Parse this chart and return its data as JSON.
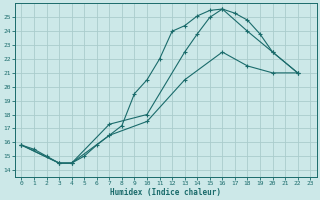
{
  "xlabel": "Humidex (Indice chaleur)",
  "xlim": [
    -0.5,
    23.5
  ],
  "ylim": [
    13.5,
    26.0
  ],
  "yticks": [
    14,
    15,
    16,
    17,
    18,
    19,
    20,
    21,
    22,
    23,
    24,
    25
  ],
  "xticks": [
    0,
    1,
    2,
    3,
    4,
    5,
    6,
    7,
    8,
    9,
    10,
    11,
    12,
    13,
    14,
    15,
    16,
    17,
    18,
    19,
    20,
    21,
    22,
    23
  ],
  "background_color": "#cce8e8",
  "grid_color": "#aacccc",
  "line_color": "#1a6b6b",
  "curve1_x": [
    0,
    1,
    2,
    3,
    4,
    5,
    6,
    7,
    8,
    9,
    10,
    11,
    12,
    13,
    14,
    15,
    16,
    17,
    18,
    19,
    20,
    22
  ],
  "curve1_y": [
    15.8,
    15.5,
    15.0,
    14.5,
    14.5,
    15.0,
    15.8,
    16.5,
    17.2,
    19.5,
    20.5,
    22.0,
    24.0,
    24.4,
    25.1,
    25.5,
    25.6,
    25.3,
    24.8,
    23.8,
    22.5,
    21.0
  ],
  "curve2_x": [
    0,
    3,
    4,
    7,
    10,
    13,
    14,
    15,
    16,
    18,
    20,
    22
  ],
  "curve2_y": [
    15.8,
    14.5,
    14.5,
    17.3,
    18.0,
    22.5,
    23.8,
    25.0,
    25.6,
    24.0,
    22.5,
    21.0
  ],
  "curve3_x": [
    0,
    3,
    4,
    7,
    10,
    13,
    16,
    18,
    20,
    22
  ],
  "curve3_y": [
    15.8,
    14.5,
    14.5,
    16.5,
    17.5,
    20.5,
    22.5,
    21.5,
    21.0,
    21.0
  ]
}
